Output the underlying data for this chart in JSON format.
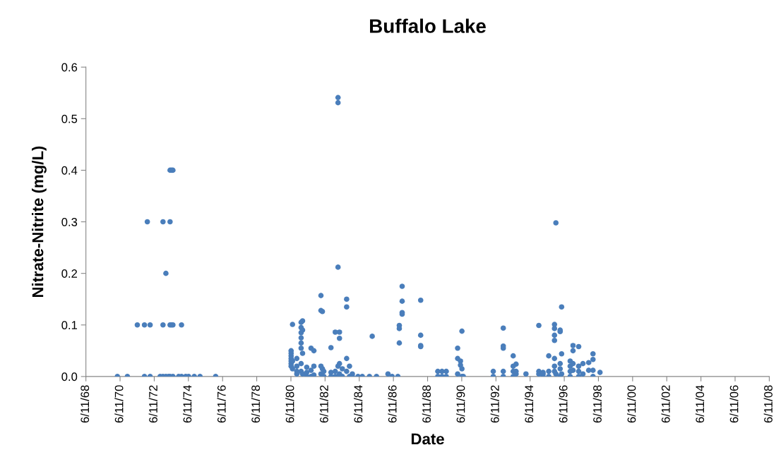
{
  "chart_data": {
    "type": "scatter",
    "title": "Buffalo Lake",
    "xlabel": "Date",
    "ylabel": "Nitrate-Nitrite (mg/L)",
    "series": [
      {
        "color": "#4a7ebb",
        "x": [
          "1970-04-15",
          "1970-11-15",
          "1971-06-15",
          "1971-11-15",
          "1971-11-15",
          "1972-01-15",
          "1972-03-15",
          "1972-03-15",
          "1972-10-15",
          "1972-12-15",
          "1972-12-15",
          "1972-12-15",
          "1973-02-15",
          "1973-02-15",
          "1973-04-15",
          "1973-05-15",
          "1973-05-15",
          "1973-05-15",
          "1973-05-15",
          "1973-06-15",
          "1973-06-15",
          "1973-07-15",
          "1973-07-15",
          "1973-07-15",
          "1973-11-15",
          "1974-01-15",
          "1974-01-15",
          "1974-04-15",
          "1974-06-15",
          "1974-10-15",
          "1975-02-15",
          "1976-01-15",
          "1980-06-15",
          "1980-06-15",
          "1980-06-15",
          "1980-06-15",
          "1980-06-15",
          "1980-06-15",
          "1980-06-15",
          "1980-07-15",
          "1980-07-15",
          "1980-07-15",
          "1980-10-15",
          "1980-10-15",
          "1980-10-15",
          "1980-10-15",
          "1981-01-15",
          "1981-01-15",
          "1981-01-15",
          "1981-01-15",
          "1981-01-15",
          "1981-01-15",
          "1981-01-15",
          "1981-01-15",
          "1981-02-15",
          "1981-02-15",
          "1981-02-15",
          "1981-02-15",
          "1981-05-15",
          "1981-05-15",
          "1981-05-15",
          "1981-08-15",
          "1981-08-15",
          "1981-08-15",
          "1981-10-15",
          "1981-10-15",
          "1981-10-15",
          "1982-03-15",
          "1982-03-15",
          "1982-03-15",
          "1982-03-15",
          "1982-04-15",
          "1982-04-15",
          "1982-05-15",
          "1982-05-15",
          "1982-10-15",
          "1982-10-15",
          "1982-10-15",
          "1983-01-15",
          "1983-01-15",
          "1983-01-15",
          "1983-03-15",
          "1983-03-15",
          "1983-03-15",
          "1983-03-15",
          "1983-03-15",
          "1983-04-15",
          "1983-04-15",
          "1983-04-15",
          "1983-04-15",
          "1983-06-15",
          "1983-06-15",
          "1983-09-15",
          "1983-09-15",
          "1983-09-15",
          "1983-09-15",
          "1983-11-15",
          "1983-11-15",
          "1984-01-15",
          "1984-01-15",
          "1984-05-15",
          "1984-08-15",
          "1985-01-15",
          "1985-03-15",
          "1985-06-15",
          "1986-02-15",
          "1986-05-15",
          "1986-09-15",
          "1986-10-15",
          "1986-10-15",
          "1986-10-15",
          "1986-12-15",
          "1986-12-15",
          "1986-12-15",
          "1986-12-15",
          "1988-01-15",
          "1988-01-15",
          "1988-01-15",
          "1988-01-15",
          "1989-01-15",
          "1989-01-15",
          "1989-04-15",
          "1989-04-15",
          "1989-07-15",
          "1989-07-15",
          "1990-03-15",
          "1990-03-15",
          "1990-03-15",
          "1990-05-15",
          "1990-05-15",
          "1990-06-15",
          "1990-06-15",
          "1990-06-15",
          "1990-07-15",
          "1992-04-15",
          "1992-04-15",
          "1992-11-15",
          "1992-11-15",
          "1992-11-15",
          "1992-11-15",
          "1992-11-15",
          "1993-06-15",
          "1993-06-15",
          "1993-06-15",
          "1993-06-15",
          "1993-08-15",
          "1993-08-15",
          "1993-08-15",
          "1994-03-15",
          "1994-12-15",
          "1994-12-15",
          "1994-12-15",
          "1995-03-15",
          "1995-03-15",
          "1995-03-15",
          "1995-07-15",
          "1995-07-15",
          "1995-07-15",
          "1995-11-15",
          "1995-11-15",
          "1995-11-15",
          "1995-11-15",
          "1995-11-15",
          "1995-11-15",
          "1995-11-15",
          "1995-12-15",
          "1995-12-15",
          "1996-03-15",
          "1996-03-15",
          "1996-03-15",
          "1996-03-15",
          "1996-03-15",
          "1996-04-15",
          "1996-04-15",
          "1996-04-15",
          "1996-10-15",
          "1996-10-15",
          "1996-10-15",
          "1996-10-15",
          "1996-12-15",
          "1996-12-15",
          "1996-12-15",
          "1996-12-15",
          "1997-04-15",
          "1997-04-15",
          "1997-04-15",
          "1997-04-15",
          "1997-07-15",
          "1997-07-15",
          "1997-11-15",
          "1997-11-15",
          "1998-02-15",
          "1998-02-15",
          "1998-02-15",
          "1998-02-15",
          "1998-07-15"
        ],
        "values": [
          0,
          0,
          0.1,
          0.1,
          0,
          0.3,
          0.1,
          0,
          0,
          0.1,
          0.3,
          0,
          0.2,
          0,
          0,
          0.4,
          0.3,
          0.1,
          0,
          0.4,
          0.1,
          0.4,
          0.1,
          0,
          0,
          0.1,
          0,
          0,
          0,
          0,
          0,
          0,
          0.05,
          0.045,
          0.04,
          0.035,
          0.03,
          0.025,
          0.02,
          0.101,
          0.03,
          0.015,
          0.035,
          0.02,
          0.01,
          0.005,
          0.105,
          0.095,
          0.085,
          0.075,
          0.065,
          0.055,
          0.025,
          0.01,
          0.108,
          0.09,
          0.045,
          0.005,
          0.018,
          0.008,
          0,
          0.055,
          0.012,
          0,
          0.05,
          0.02,
          0.003,
          0.157,
          0.128,
          0.02,
          0.005,
          0.126,
          0.015,
          0.01,
          0,
          0.056,
          0.008,
          0,
          0.086,
          0.01,
          0,
          0.541,
          0.531,
          0.212,
          0.02,
          0,
          0.086,
          0.074,
          0.025,
          0.005,
          0.015,
          0,
          0.15,
          0.135,
          0.035,
          0.01,
          0.02,
          0,
          0.005,
          0,
          0,
          0,
          0,
          0.078,
          0,
          0.005,
          0,
          0,
          0.099,
          0.093,
          0.065,
          0.175,
          0.146,
          0.124,
          0.121,
          0.148,
          0.08,
          0.06,
          0.058,
          0.01,
          0,
          0.01,
          0,
          0.01,
          0,
          0.055,
          0.035,
          0.005,
          0.03,
          0.022,
          0.088,
          0.015,
          0,
          0,
          0.01,
          0,
          0.094,
          0.059,
          0.055,
          0.01,
          0,
          0.04,
          0.02,
          0.01,
          0,
          0.024,
          0.01,
          0.005,
          0.005,
          0.099,
          0.01,
          0.005,
          0.008,
          0,
          0.005,
          0.01,
          0,
          0.04,
          0.101,
          0.093,
          0.08,
          0.07,
          0.035,
          0.02,
          0.01,
          0.298,
          0.005,
          0.09,
          0.087,
          0.025,
          0.015,
          0,
          0.135,
          0.044,
          0.005,
          0.03,
          0.02,
          0.01,
          0,
          0.06,
          0.05,
          0.025,
          0.012,
          0.058,
          0.02,
          0.01,
          0,
          0.025,
          0.005,
          0.027,
          0.012,
          0.044,
          0.033,
          0.012,
          0,
          0.008
        ]
      }
    ],
    "xlim": [
      "1968-06-11",
      "2008-06-11"
    ],
    "xticks": [
      {
        "value": "1968-06-11",
        "label": "6/11/68"
      },
      {
        "value": "1970-06-11",
        "label": "6/11/70"
      },
      {
        "value": "1972-06-11",
        "label": "6/11/72"
      },
      {
        "value": "1974-06-11",
        "label": "6/11/74"
      },
      {
        "value": "1976-06-11",
        "label": "6/11/76"
      },
      {
        "value": "1978-06-11",
        "label": "6/11/78"
      },
      {
        "value": "1980-06-11",
        "label": "6/11/80"
      },
      {
        "value": "1982-06-11",
        "label": "6/11/82"
      },
      {
        "value": "1984-06-11",
        "label": "6/11/84"
      },
      {
        "value": "1986-06-11",
        "label": "6/11/86"
      },
      {
        "value": "1988-06-11",
        "label": "6/11/88"
      },
      {
        "value": "1990-06-11",
        "label": "6/11/90"
      },
      {
        "value": "1992-06-11",
        "label": "6/11/92"
      },
      {
        "value": "1994-06-11",
        "label": "6/11/94"
      },
      {
        "value": "1996-06-11",
        "label": "6/11/96"
      },
      {
        "value": "1998-06-11",
        "label": "6/11/98"
      },
      {
        "value": "2000-06-11",
        "label": "6/11/00"
      },
      {
        "value": "2002-06-11",
        "label": "6/11/02"
      },
      {
        "value": "2004-06-11",
        "label": "6/11/04"
      },
      {
        "value": "2006-06-11",
        "label": "6/11/06"
      },
      {
        "value": "2008-06-11",
        "label": "6/11/08"
      }
    ],
    "ylim": [
      0,
      0.6
    ],
    "yticks": [
      {
        "value": 0,
        "label": "0.0"
      },
      0.1,
      0.2,
      0.3,
      0.4,
      0.5,
      0.6
    ],
    "marker": "circle",
    "grid": false
  }
}
